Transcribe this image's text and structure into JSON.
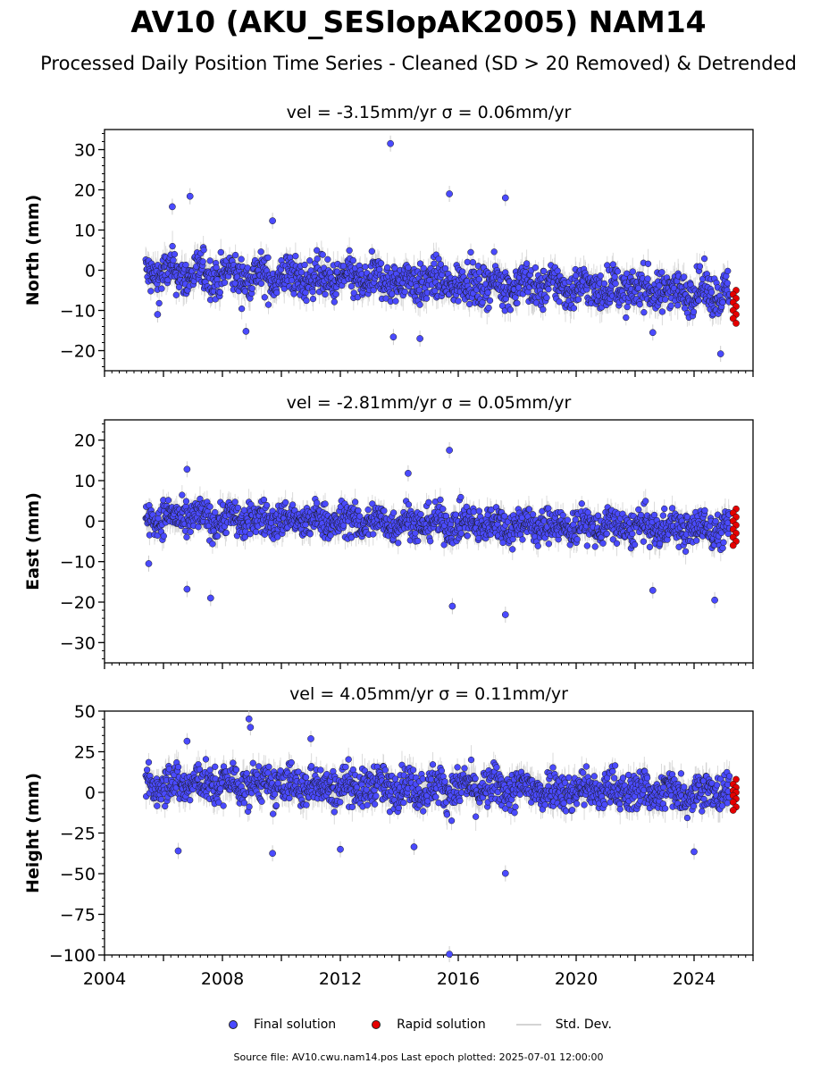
{
  "title": "AV10 (AKU_SESlopAK2005) NAM14",
  "subtitle": "Processed Daily Position Time Series - Cleaned (SD > 20 Removed) & Detrended",
  "legend": {
    "final_label": "Final solution",
    "rapid_label": "Rapid solution",
    "std_label": "Std. Dev."
  },
  "colors": {
    "final": "#4a4aff",
    "rapid": "#e60000",
    "std": "#cccccc"
  },
  "source_note": "Source file: AV10.cwu.nam14.pos  Last epoch plotted: 2025-07-01 12:00:00",
  "chart_data": [
    {
      "type": "scatter",
      "title": "vel = -3.15mm/yr   σ = 0.06mm/yr",
      "ylabel": "North (mm)",
      "xlim": [
        2004.0,
        2026.0
      ],
      "ylim": [
        -25,
        35
      ],
      "yticks": [
        -20,
        -10,
        0,
        10,
        20,
        30
      ],
      "xticks": [
        2004,
        2008,
        2012,
        2016,
        2020,
        2024
      ],
      "series": [
        {
          "name": "Final solution",
          "x_range": [
            2005.4,
            2025.2
          ],
          "center": -3,
          "spread": 3.5,
          "rate_mm_per_yr": -0.25,
          "outliers": [
            [
              2013.7,
              31.5
            ],
            [
              2006.3,
              15.8
            ],
            [
              2006.9,
              18.4
            ],
            [
              2015.7,
              19.0
            ],
            [
              2017.6,
              18.0
            ],
            [
              2009.7,
              12.3
            ],
            [
              2013.8,
              -16.6
            ],
            [
              2014.7,
              -17.0
            ],
            [
              2022.6,
              -15.5
            ],
            [
              2024.9,
              -20.8
            ],
            [
              2008.8,
              -15.2
            ],
            [
              2005.8,
              -11.0
            ]
          ]
        },
        {
          "name": "Rapid solution",
          "x_range": [
            2025.25,
            2025.5
          ],
          "values": [
            -5,
            -6,
            -7,
            -8,
            -9,
            -10,
            -11,
            -12,
            -13.2
          ]
        }
      ]
    },
    {
      "type": "scatter",
      "title": "vel = -2.81mm/yr   σ = 0.05mm/yr",
      "ylabel": "East (mm)",
      "xlim": [
        2004.0,
        2026.0
      ],
      "ylim": [
        -35,
        25
      ],
      "yticks": [
        -30,
        -20,
        -10,
        0,
        10,
        20
      ],
      "xticks": [
        2004,
        2008,
        2012,
        2016,
        2020,
        2024
      ],
      "series": [
        {
          "name": "Final solution",
          "x_range": [
            2005.4,
            2025.2
          ],
          "center": -0.5,
          "spread": 3.0,
          "rate_mm_per_yr": -0.15,
          "outliers": [
            [
              2015.7,
              17.5
            ],
            [
              2006.8,
              12.8
            ],
            [
              2014.3,
              11.8
            ],
            [
              2015.8,
              -21.0
            ],
            [
              2017.6,
              -23.1
            ],
            [
              2007.6,
              -19.0
            ],
            [
              2024.7,
              -19.5
            ],
            [
              2006.8,
              -16.8
            ],
            [
              2022.6,
              -17.1
            ],
            [
              2005.5,
              -10.5
            ]
          ]
        },
        {
          "name": "Rapid solution",
          "x_range": [
            2025.25,
            2025.5
          ],
          "values": [
            3,
            2,
            1,
            0,
            -1,
            -2,
            -3,
            -4,
            -5,
            -6
          ]
        }
      ]
    },
    {
      "type": "scatter",
      "title": "vel = 4.05mm/yr   σ = 0.11mm/yr",
      "ylabel": "Height (mm)",
      "xlim": [
        2004.0,
        2026.0
      ],
      "ylim": [
        -100,
        50
      ],
      "yticks": [
        -100,
        -75,
        -50,
        -25,
        0,
        25,
        50
      ],
      "xticks": [
        2004,
        2008,
        2012,
        2016,
        2020,
        2024
      ],
      "series": [
        {
          "name": "Final solution",
          "x_range": [
            2005.4,
            2025.2
          ],
          "center": 3,
          "spread": 8.5,
          "rate_mm_per_yr": -0.3,
          "outliers": [
            [
              2008.9,
              45.2
            ],
            [
              2008.95,
              40.0
            ],
            [
              2011.0,
              33.0
            ],
            [
              2006.8,
              31.5
            ],
            [
              2015.7,
              -99.5
            ],
            [
              2017.6,
              -49.8
            ],
            [
              2009.7,
              -37.5
            ],
            [
              2006.5,
              -36.0
            ],
            [
              2024.0,
              -36.5
            ],
            [
              2012.0,
              -35.0
            ],
            [
              2014.5,
              -33.5
            ]
          ]
        },
        {
          "name": "Rapid solution",
          "x_range": [
            2025.25,
            2025.5
          ],
          "values": [
            8,
            5,
            3,
            1,
            0,
            -2,
            -4,
            -6,
            -9,
            -11
          ]
        }
      ]
    }
  ]
}
